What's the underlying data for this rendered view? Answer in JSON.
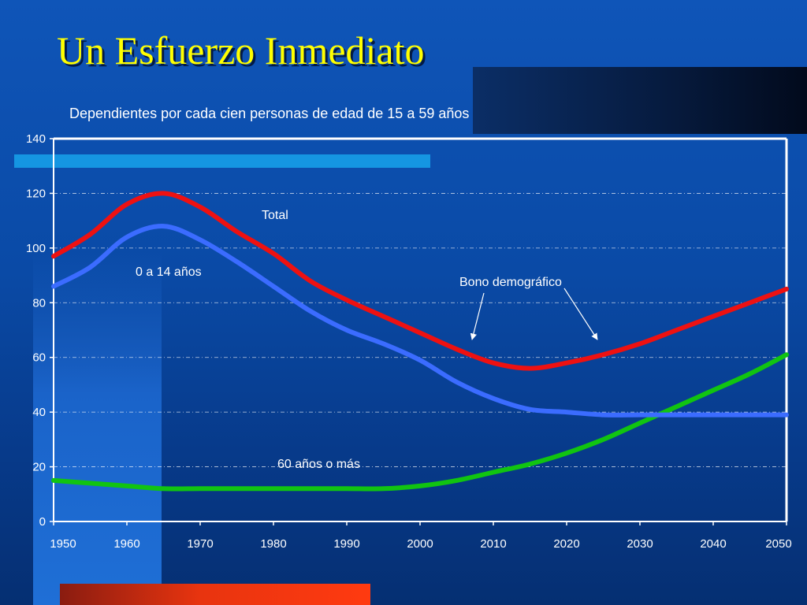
{
  "slide": {
    "title": "Un Esfuerzo Inmediato"
  },
  "chart_data": {
    "type": "line",
    "subtitle": "Dependientes por cada cien personas de edad de 15 a 59 años",
    "xlabel": "",
    "ylabel": "",
    "xlim": [
      1950,
      2050
    ],
    "ylim": [
      0,
      140
    ],
    "yticks": [
      0,
      20,
      40,
      60,
      80,
      100,
      120,
      140
    ],
    "xticks": [
      1950,
      1960,
      1970,
      1980,
      1990,
      2000,
      2010,
      2020,
      2030,
      2040,
      2050
    ],
    "x": [
      1950,
      1955,
      1960,
      1965,
      1970,
      1975,
      1980,
      1985,
      1990,
      1995,
      2000,
      2005,
      2010,
      2015,
      2020,
      2025,
      2030,
      2035,
      2040,
      2045,
      2050
    ],
    "grid": true,
    "series": [
      {
        "key": "total",
        "label": "Total",
        "color": "#ee1111",
        "values": [
          97,
          105,
          116,
          120,
          115,
          106,
          98,
          88,
          81,
          75,
          69,
          63,
          58,
          56,
          58,
          61,
          65,
          70,
          75,
          80,
          85
        ]
      },
      {
        "key": "young",
        "label": "0 a 14 años",
        "color": "#3b6cff",
        "values": [
          86,
          93,
          104,
          108,
          103,
          95,
          86,
          77,
          70,
          65,
          59,
          51,
          45,
          41,
          40,
          39,
          39,
          39,
          39,
          39,
          39
        ]
      },
      {
        "key": "old",
        "label": "60 años o más",
        "color": "#11c411",
        "values": [
          15,
          14,
          13,
          12,
          12,
          12,
          12,
          12,
          12,
          12,
          13,
          15,
          18,
          21,
          25,
          30,
          36,
          42,
          48,
          54,
          61
        ]
      }
    ],
    "annotations": [
      {
        "text": "Bono demográfico"
      }
    ]
  }
}
